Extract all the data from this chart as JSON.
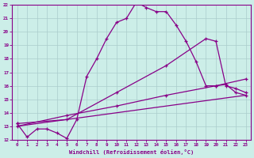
{
  "xlabel": "Windchill (Refroidissement éolien,°C)",
  "xlim": [
    -0.5,
    23.5
  ],
  "ylim": [
    12,
    22
  ],
  "background_color": "#cceee8",
  "line_color": "#880088",
  "grid_color": "#aacccc",
  "series1": [
    [
      0,
      13.2
    ],
    [
      1,
      12.2
    ],
    [
      2,
      12.8
    ],
    [
      3,
      12.8
    ],
    [
      4,
      12.5
    ],
    [
      5,
      12.1
    ],
    [
      6,
      13.5
    ],
    [
      7,
      16.7
    ],
    [
      8,
      18.0
    ],
    [
      9,
      19.5
    ],
    [
      10,
      20.7
    ],
    [
      11,
      21.0
    ],
    [
      12,
      22.2
    ],
    [
      13,
      21.8
    ],
    [
      14,
      21.5
    ],
    [
      15,
      21.5
    ],
    [
      16,
      20.5
    ],
    [
      17,
      19.3
    ],
    [
      18,
      17.8
    ],
    [
      19,
      16.0
    ],
    [
      20,
      16.0
    ],
    [
      21,
      16.1
    ],
    [
      22,
      15.5
    ],
    [
      23,
      15.3
    ]
  ],
  "series2": [
    [
      0,
      13.2
    ],
    [
      5,
      13.5
    ],
    [
      10,
      15.5
    ],
    [
      15,
      17.5
    ],
    [
      19,
      19.5
    ],
    [
      20,
      19.3
    ],
    [
      21,
      16.0
    ],
    [
      22,
      15.8
    ],
    [
      23,
      15.5
    ]
  ],
  "series3": [
    [
      0,
      13.0
    ],
    [
      5,
      13.8
    ],
    [
      10,
      14.5
    ],
    [
      15,
      15.3
    ],
    [
      20,
      16.0
    ],
    [
      23,
      16.5
    ]
  ],
  "series4": [
    [
      0,
      13.0
    ],
    [
      23,
      15.3
    ]
  ]
}
